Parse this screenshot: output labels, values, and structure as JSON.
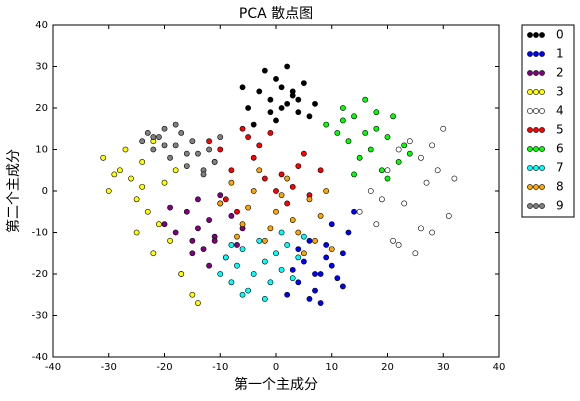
{
  "chart_data": {
    "type": "scatter",
    "title": "PCA 散点图",
    "x_label": "第一个主成分",
    "y_label": "第二个主成分",
    "xlim": [
      -40,
      40
    ],
    "ylim": [
      -40,
      40
    ],
    "xticks": [
      -40,
      -30,
      -20,
      -10,
      0,
      10,
      20,
      30,
      40
    ],
    "yticks": [
      -40,
      -30,
      -20,
      -10,
      0,
      10,
      20,
      30,
      40
    ],
    "grid": false,
    "legend": "outside-right",
    "series": [
      {
        "name": "0",
        "color": "#000000",
        "x": [
          -5,
          -3,
          -1,
          0,
          1,
          2,
          3,
          4,
          5,
          6,
          -2,
          0,
          2,
          4,
          -4,
          1,
          3,
          -1,
          7,
          -6
        ],
        "y": [
          20,
          24,
          22,
          27,
          25,
          21,
          23,
          19,
          26,
          18,
          29,
          17,
          30,
          22,
          16,
          20,
          24,
          19,
          21,
          25
        ]
      },
      {
        "name": "1",
        "color": "#0000ff",
        "x": [
          2,
          4,
          6,
          8,
          10,
          12,
          13,
          5,
          7,
          9,
          11,
          3,
          8,
          6,
          10,
          14,
          12,
          4,
          9,
          7
        ],
        "y": [
          -25,
          -22,
          -26,
          -20,
          -18,
          -15,
          -10,
          -17,
          -24,
          -13,
          -21,
          -19,
          -27,
          -12,
          -8,
          -5,
          -23,
          -14,
          -16,
          -20
        ]
      },
      {
        "name": "2",
        "color": "#800080",
        "x": [
          -20,
          -18,
          -16,
          -15,
          -14,
          -13,
          -12,
          -11,
          -10,
          -9,
          -8,
          -7,
          -17,
          -12,
          -10,
          -14,
          -6,
          -19,
          -11,
          -15
        ],
        "y": [
          -8,
          -10,
          -5,
          -12,
          -9,
          -14,
          -7,
          -11,
          -3,
          -16,
          -6,
          -13,
          -20,
          -18,
          -1,
          -2,
          -9,
          -4,
          -12,
          -15
        ]
      },
      {
        "name": "3",
        "color": "#ffff00",
        "x": [
          -31,
          -30,
          -28,
          -27,
          -26,
          -25,
          -24,
          -23,
          -22,
          -21,
          -20,
          -19,
          -18,
          -29,
          -25,
          -22,
          -17,
          -15,
          -14,
          -24
        ],
        "y": [
          8,
          0,
          5,
          10,
          3,
          -2,
          7,
          -5,
          12,
          -8,
          2,
          -12,
          5,
          4,
          -10,
          -15,
          -20,
          -25,
          -27,
          1
        ]
      },
      {
        "name": "4",
        "color": "#ffffff",
        "x": [
          15,
          17,
          18,
          20,
          21,
          22,
          23,
          24,
          25,
          26,
          27,
          28,
          29,
          30,
          31,
          32,
          22,
          26,
          28,
          19
        ],
        "y": [
          -5,
          0,
          -8,
          5,
          -12,
          10,
          -3,
          12,
          -15,
          8,
          2,
          -10,
          5,
          15,
          -6,
          3,
          -13,
          -9,
          11,
          -2
        ]
      },
      {
        "name": "5",
        "color": "#ff0000",
        "x": [
          -12,
          -10,
          -8,
          -6,
          -4,
          -2,
          0,
          2,
          4,
          5,
          -9,
          -5,
          -3,
          1,
          -11,
          -7,
          3,
          6,
          -1,
          8
        ],
        "y": [
          12,
          10,
          5,
          15,
          8,
          3,
          0,
          -3,
          6,
          9,
          -2,
          13,
          11,
          4,
          7,
          -5,
          1,
          -1,
          14,
          5
        ]
      },
      {
        "name": "6",
        "color": "#00ff00",
        "x": [
          9,
          11,
          12,
          13,
          14,
          15,
          16,
          17,
          18,
          19,
          20,
          21,
          22,
          23,
          24,
          14,
          18,
          12,
          20,
          16
        ],
        "y": [
          16,
          14,
          20,
          12,
          18,
          8,
          22,
          10,
          15,
          5,
          13,
          18,
          7,
          11,
          9,
          4,
          19,
          17,
          3,
          14
        ]
      },
      {
        "name": "7",
        "color": "#00ffff",
        "x": [
          -10,
          -9,
          -8,
          -7,
          -6,
          -5,
          -4,
          -3,
          -2,
          -1,
          0,
          1,
          2,
          3,
          4,
          5,
          -6,
          -2,
          1,
          -8
        ],
        "y": [
          -20,
          -16,
          -22,
          -18,
          -14,
          -24,
          -20,
          -12,
          -17,
          -22,
          -15,
          -19,
          -13,
          -21,
          -16,
          -11,
          -25,
          -26,
          -10,
          -13
        ]
      },
      {
        "name": "8",
        "color": "#ffa500",
        "x": [
          -10,
          -8,
          -6,
          -4,
          -2,
          0,
          2,
          4,
          6,
          8,
          10,
          -7,
          -3,
          1,
          5,
          9,
          -5,
          3,
          -1,
          7
        ],
        "y": [
          -3,
          2,
          -8,
          0,
          -12,
          -5,
          3,
          -10,
          -2,
          -6,
          -14,
          -11,
          5,
          -1,
          -15,
          0,
          -4,
          -7,
          -9,
          -12
        ]
      },
      {
        "name": "9",
        "color": "#808080",
        "x": [
          -24,
          -23,
          -22,
          -21,
          -20,
          -19,
          -18,
          -17,
          -16,
          -15,
          -14,
          -13,
          -12,
          -11,
          -10,
          -20,
          -18,
          -16,
          -13,
          -22
        ],
        "y": [
          12,
          14,
          10,
          13,
          15,
          8,
          11,
          14,
          6,
          12,
          9,
          5,
          10,
          7,
          13,
          11,
          16,
          9,
          4,
          13
        ]
      }
    ]
  }
}
